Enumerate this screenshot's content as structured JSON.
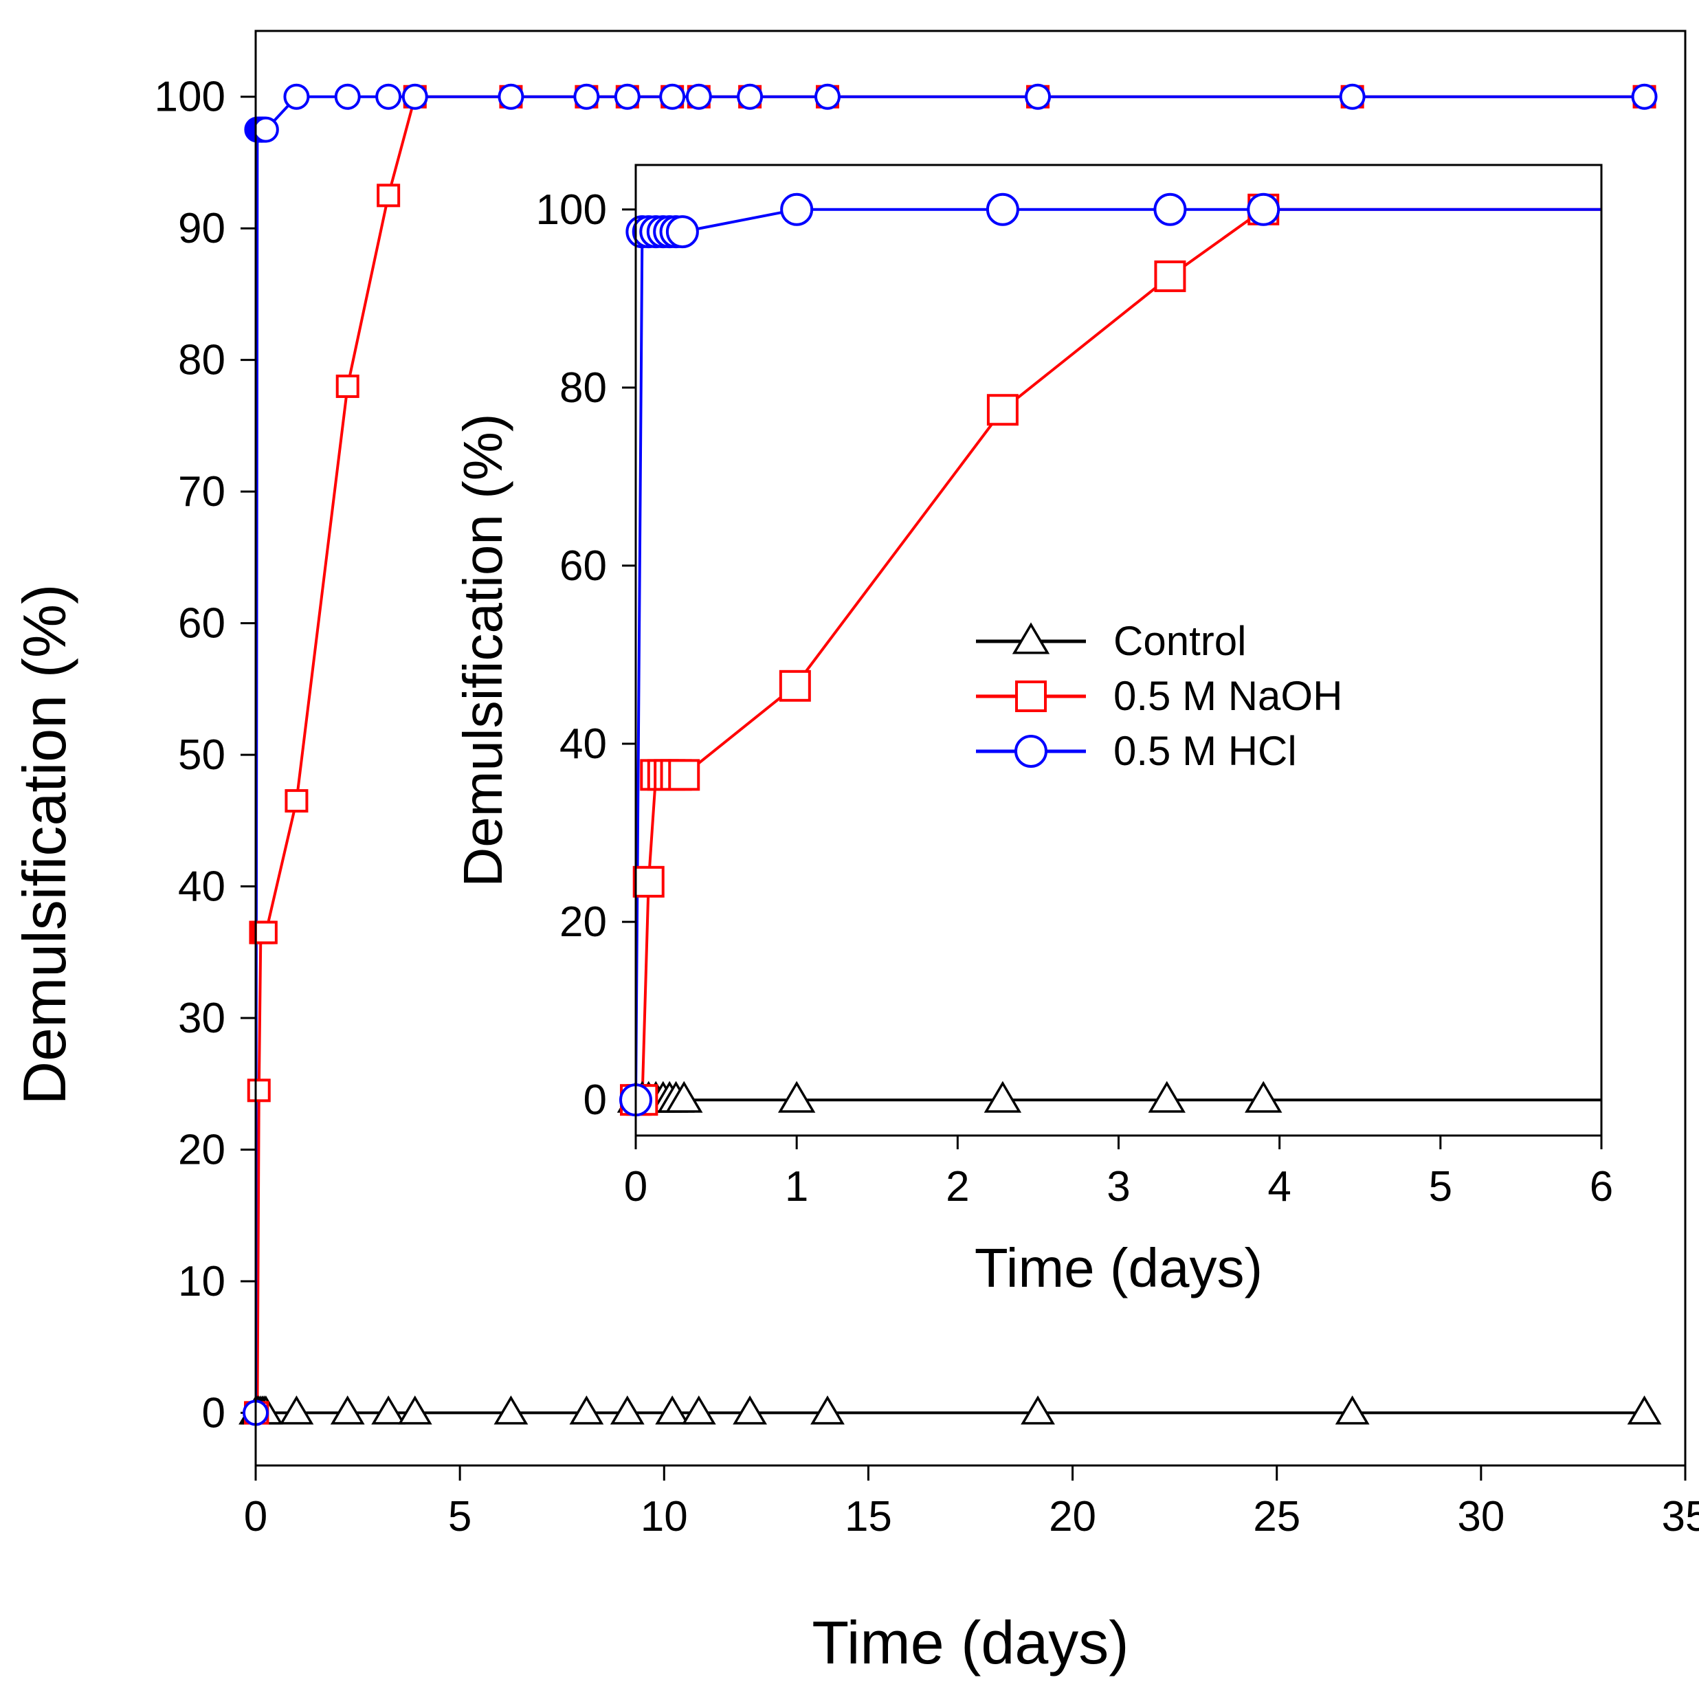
{
  "chart_data": [
    {
      "id": "main",
      "type": "line",
      "xlabel": "Time (days)",
      "ylabel": "Demulsification (%)",
      "xlim": [
        0,
        35
      ],
      "ylim": [
        -4,
        105
      ],
      "xticks": [
        0,
        5,
        10,
        15,
        20,
        25,
        30,
        35
      ],
      "yticks": [
        0,
        10,
        20,
        30,
        40,
        50,
        60,
        70,
        80,
        90,
        100
      ],
      "series": [
        {
          "name": "Control",
          "color": "#000000",
          "marker": "triangle",
          "x": [
            0,
            0.04,
            0.08,
            0.125,
            0.17,
            0.21,
            0.25,
            1,
            2.25,
            3.25,
            3.9,
            6.25,
            8.1,
            9.1,
            10.2,
            10.85,
            12.1,
            14,
            19.15,
            26.85,
            34
          ],
          "y": [
            0,
            0,
            0,
            0,
            0,
            0,
            0,
            0,
            0,
            0,
            0,
            0,
            0,
            0,
            0,
            0,
            0,
            0,
            0,
            0,
            0
          ]
        },
        {
          "name": "0.5 M NaOH",
          "color": "#ff0000",
          "marker": "square",
          "x": [
            0,
            0.04,
            0.08,
            0.125,
            0.17,
            0.21,
            0.25,
            1,
            2.25,
            3.25,
            3.9,
            6.25,
            8.1,
            9.1,
            10.2,
            10.85,
            12.1,
            14,
            19.15,
            26.85,
            34
          ],
          "y": [
            0,
            0,
            24.5,
            36.5,
            36.5,
            36.5,
            36.5,
            46.5,
            78,
            92.5,
            100,
            100,
            100,
            100,
            100,
            100,
            100,
            100,
            100,
            100,
            100
          ]
        },
        {
          "name": "0.5 M HCl",
          "color": "#0000ff",
          "marker": "circle",
          "x": [
            0,
            0.04,
            0.08,
            0.125,
            0.17,
            0.21,
            0.25,
            1,
            2.25,
            3.25,
            3.9,
            6.25,
            8.1,
            9.1,
            10.2,
            10.85,
            12.1,
            14,
            19.15,
            26.85,
            34
          ],
          "y": [
            0,
            97.5,
            97.5,
            97.5,
            97.5,
            97.5,
            97.5,
            100,
            100,
            100,
            100,
            100,
            100,
            100,
            100,
            100,
            100,
            100,
            100,
            100,
            100
          ]
        }
      ]
    },
    {
      "id": "inset",
      "type": "line",
      "xlabel": "Time (days)",
      "ylabel": "Demulsification (%)",
      "xlim": [
        0,
        6
      ],
      "ylim": [
        -4,
        105
      ],
      "xticks": [
        0,
        1,
        2,
        3,
        4,
        5,
        6
      ],
      "yticks": [
        0,
        20,
        40,
        60,
        80,
        100
      ],
      "legend": "center-right",
      "series": [
        {
          "name": "Control",
          "color": "#000000",
          "marker": "triangle",
          "x": [
            0,
            0.04,
            0.08,
            0.125,
            0.17,
            0.21,
            0.25,
            0.3,
            1,
            2.28,
            3.3,
            3.9,
            6
          ],
          "y": [
            0,
            0,
            0,
            0,
            0,
            0,
            0,
            0,
            0,
            0,
            0,
            0,
            0
          ],
          "marker_count": 12
        },
        {
          "name": "0.5 M NaOH",
          "color": "#ff0000",
          "marker": "square",
          "x": [
            0,
            0.04,
            0.08,
            0.125,
            0.17,
            0.21,
            0.25,
            0.3,
            0.99,
            2.28,
            3.32,
            3.9,
            6
          ],
          "y": [
            0,
            0,
            24.5,
            36.5,
            36.5,
            36.5,
            36.5,
            36.5,
            46.5,
            77.5,
            92.5,
            100,
            100
          ],
          "marker_count": 12
        },
        {
          "name": "0.5 M HCl",
          "color": "#0000ff",
          "marker": "circle",
          "x": [
            0,
            0.04,
            0.08,
            0.125,
            0.17,
            0.21,
            0.25,
            0.29,
            1,
            2.28,
            3.32,
            3.9,
            6
          ],
          "y": [
            0,
            97.5,
            97.5,
            97.5,
            97.5,
            97.5,
            97.5,
            97.5,
            100,
            100,
            100,
            100,
            100
          ],
          "marker_count": 12
        }
      ]
    }
  ]
}
